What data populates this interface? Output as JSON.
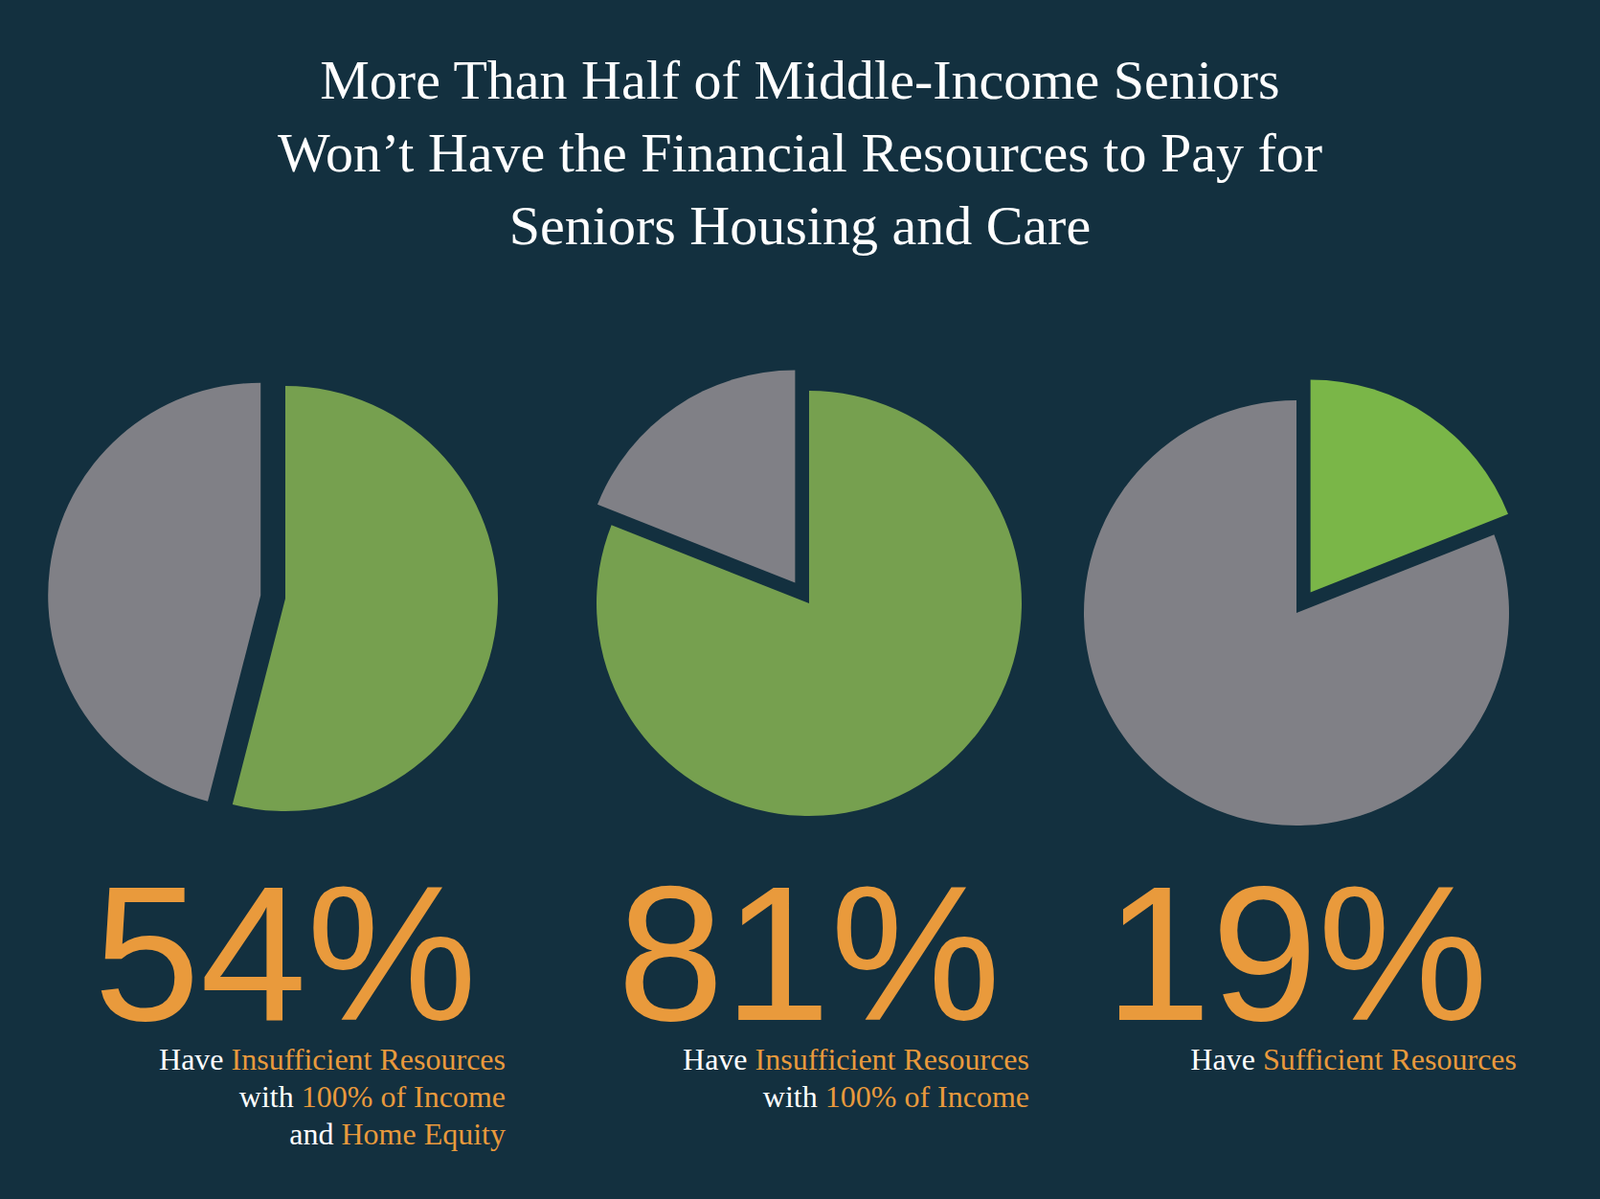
{
  "title": [
    "More Than Half of Middle-Income Seniors",
    "Won’t Have the Financial Resources to Pay for",
    "Seniors Housing and Care"
  ],
  "chart_data": [
    {
      "type": "pie",
      "values": [
        54,
        46
      ],
      "colors": [
        "#76a04f",
        "#808086"
      ],
      "data_labels": true,
      "value_labels": [
        "54%",
        null
      ],
      "caption": [
        [
          {
            "text": "Have ",
            "color": "#ffffff"
          },
          {
            "text": "Insufficient Resources",
            "color": "#e99a3c"
          }
        ],
        [
          {
            "text": "with ",
            "color": "#ffffff"
          },
          {
            "text": "100% of Income",
            "color": "#e99a3c"
          }
        ],
        [
          {
            "text": "and ",
            "color": "#ffffff"
          },
          {
            "text": "Home Equity",
            "color": "#e99a3c"
          }
        ]
      ]
    },
    {
      "type": "pie",
      "values": [
        81,
        19
      ],
      "colors": [
        "#76a04f",
        "#808086"
      ],
      "data_labels": true,
      "value_labels": [
        "81%",
        null
      ],
      "caption": [
        [
          {
            "text": "Have ",
            "color": "#ffffff"
          },
          {
            "text": "Insufficient Resources",
            "color": "#e99a3c"
          }
        ],
        [
          {
            "text": "with ",
            "color": "#ffffff"
          },
          {
            "text": "100% of Income",
            "color": "#e99a3c"
          }
        ]
      ]
    },
    {
      "type": "pie",
      "values": [
        19,
        81
      ],
      "colors": [
        "#7ab648",
        "#808086"
      ],
      "data_labels": true,
      "value_labels": [
        "19%",
        null
      ],
      "caption": [
        [
          {
            "text": "Have ",
            "color": "#ffffff"
          },
          {
            "text": "Sufficient Resources",
            "color": "#e99a3c"
          }
        ]
      ]
    }
  ]
}
